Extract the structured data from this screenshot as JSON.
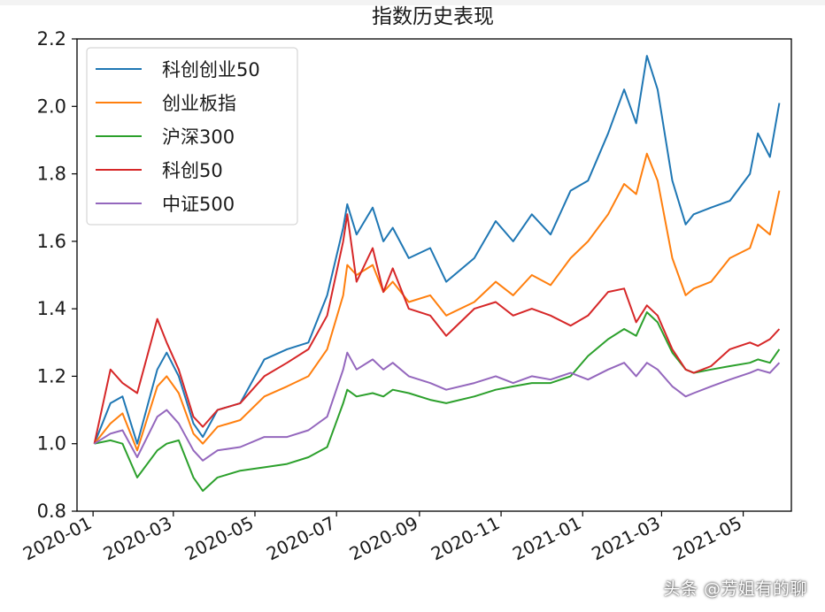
{
  "chart_data": {
    "type": "line",
    "title": "指数历史表现",
    "xlabel": "",
    "ylabel": "",
    "ylim": [
      0.8,
      2.2
    ],
    "xlim": [
      "2019-12-20",
      "2021-06-06"
    ],
    "yticks": [
      0.8,
      1.0,
      1.2,
      1.4,
      1.6,
      1.8,
      2.0,
      2.2
    ],
    "ytick_labels": [
      "0.8",
      "1.0",
      "1.2",
      "1.4",
      "1.6",
      "1.8",
      "2.0",
      "2.2"
    ],
    "xticks": [
      "2020-01-01",
      "2020-03-01",
      "2020-05-01",
      "2020-07-01",
      "2020-09-01",
      "2020-11-01",
      "2021-01-01",
      "2021-03-01",
      "2021-05-01"
    ],
    "xtick_labels": [
      "2020-01",
      "2020-03",
      "2020-05",
      "2020-07",
      "2020-09",
      "2020-11",
      "2021-01",
      "2021-03",
      "2021-05"
    ],
    "grid": false,
    "legend": "top-left",
    "series": [
      {
        "name": "科创创业50",
        "color": "#1f77b4",
        "x": [
          "2020-01-02",
          "2020-01-14",
          "2020-01-23",
          "2020-02-03",
          "2020-02-18",
          "2020-02-25",
          "2020-03-05",
          "2020-03-16",
          "2020-03-23",
          "2020-04-03",
          "2020-04-20",
          "2020-05-08",
          "2020-05-25",
          "2020-06-10",
          "2020-06-24",
          "2020-07-06",
          "2020-07-09",
          "2020-07-16",
          "2020-07-28",
          "2020-08-05",
          "2020-08-12",
          "2020-08-24",
          "2020-09-09",
          "2020-09-21",
          "2020-10-12",
          "2020-10-28",
          "2020-11-10",
          "2020-11-24",
          "2020-12-08",
          "2020-12-23",
          "2021-01-05",
          "2021-01-20",
          "2021-02-01",
          "2021-02-10",
          "2021-02-18",
          "2021-02-26",
          "2021-03-09",
          "2021-03-19",
          "2021-03-25",
          "2021-04-07",
          "2021-04-21",
          "2021-05-06",
          "2021-05-12",
          "2021-05-21",
          "2021-05-28"
        ],
        "values": [
          1.0,
          1.12,
          1.14,
          1.0,
          1.22,
          1.27,
          1.2,
          1.06,
          1.02,
          1.1,
          1.12,
          1.25,
          1.28,
          1.3,
          1.44,
          1.64,
          1.71,
          1.62,
          1.7,
          1.6,
          1.64,
          1.55,
          1.58,
          1.48,
          1.55,
          1.66,
          1.6,
          1.68,
          1.62,
          1.75,
          1.78,
          1.92,
          2.05,
          1.95,
          2.15,
          2.05,
          1.78,
          1.65,
          1.68,
          1.7,
          1.72,
          1.8,
          1.92,
          1.85,
          2.01
        ]
      },
      {
        "name": "创业板指",
        "color": "#ff7f0e",
        "x": [
          "2020-01-02",
          "2020-01-14",
          "2020-01-23",
          "2020-02-03",
          "2020-02-18",
          "2020-02-25",
          "2020-03-05",
          "2020-03-16",
          "2020-03-23",
          "2020-04-03",
          "2020-04-20",
          "2020-05-08",
          "2020-05-25",
          "2020-06-10",
          "2020-06-24",
          "2020-07-06",
          "2020-07-09",
          "2020-07-16",
          "2020-07-28",
          "2020-08-05",
          "2020-08-12",
          "2020-08-24",
          "2020-09-09",
          "2020-09-21",
          "2020-10-12",
          "2020-10-28",
          "2020-11-10",
          "2020-11-24",
          "2020-12-08",
          "2020-12-23",
          "2021-01-05",
          "2021-01-20",
          "2021-02-01",
          "2021-02-10",
          "2021-02-18",
          "2021-02-26",
          "2021-03-09",
          "2021-03-19",
          "2021-03-25",
          "2021-04-07",
          "2021-04-21",
          "2021-05-06",
          "2021-05-12",
          "2021-05-21",
          "2021-05-28"
        ],
        "values": [
          1.0,
          1.06,
          1.09,
          0.98,
          1.17,
          1.2,
          1.15,
          1.03,
          1.0,
          1.05,
          1.07,
          1.14,
          1.17,
          1.2,
          1.28,
          1.44,
          1.53,
          1.5,
          1.53,
          1.45,
          1.48,
          1.42,
          1.44,
          1.38,
          1.42,
          1.48,
          1.44,
          1.5,
          1.47,
          1.55,
          1.6,
          1.68,
          1.77,
          1.74,
          1.86,
          1.78,
          1.55,
          1.44,
          1.46,
          1.48,
          1.55,
          1.58,
          1.65,
          1.62,
          1.75
        ]
      },
      {
        "name": "沪深300",
        "color": "#2ca02c",
        "x": [
          "2020-01-02",
          "2020-01-14",
          "2020-01-23",
          "2020-02-03",
          "2020-02-18",
          "2020-02-25",
          "2020-03-05",
          "2020-03-16",
          "2020-03-23",
          "2020-04-03",
          "2020-04-20",
          "2020-05-08",
          "2020-05-25",
          "2020-06-10",
          "2020-06-24",
          "2020-07-06",
          "2020-07-09",
          "2020-07-16",
          "2020-07-28",
          "2020-08-05",
          "2020-08-12",
          "2020-08-24",
          "2020-09-09",
          "2020-09-21",
          "2020-10-12",
          "2020-10-28",
          "2020-11-10",
          "2020-11-24",
          "2020-12-08",
          "2020-12-23",
          "2021-01-05",
          "2021-01-20",
          "2021-02-01",
          "2021-02-10",
          "2021-02-18",
          "2021-02-26",
          "2021-03-09",
          "2021-03-19",
          "2021-03-25",
          "2021-04-07",
          "2021-04-21",
          "2021-05-06",
          "2021-05-12",
          "2021-05-21",
          "2021-05-28"
        ],
        "values": [
          1.0,
          1.01,
          1.0,
          0.9,
          0.98,
          1.0,
          1.01,
          0.9,
          0.86,
          0.9,
          0.92,
          0.93,
          0.94,
          0.96,
          0.99,
          1.12,
          1.16,
          1.14,
          1.15,
          1.14,
          1.16,
          1.15,
          1.13,
          1.12,
          1.14,
          1.16,
          1.17,
          1.18,
          1.18,
          1.2,
          1.26,
          1.31,
          1.34,
          1.32,
          1.39,
          1.36,
          1.27,
          1.22,
          1.21,
          1.22,
          1.23,
          1.24,
          1.25,
          1.24,
          1.28
        ]
      },
      {
        "name": "科创50",
        "color": "#d62728",
        "x": [
          "2020-01-02",
          "2020-01-14",
          "2020-01-23",
          "2020-02-03",
          "2020-02-18",
          "2020-02-25",
          "2020-03-05",
          "2020-03-16",
          "2020-03-23",
          "2020-04-03",
          "2020-04-20",
          "2020-05-08",
          "2020-05-25",
          "2020-06-10",
          "2020-06-24",
          "2020-07-06",
          "2020-07-09",
          "2020-07-16",
          "2020-07-28",
          "2020-08-05",
          "2020-08-12",
          "2020-08-24",
          "2020-09-09",
          "2020-09-21",
          "2020-10-12",
          "2020-10-28",
          "2020-11-10",
          "2020-11-24",
          "2020-12-08",
          "2020-12-23",
          "2021-01-05",
          "2021-01-20",
          "2021-02-01",
          "2021-02-10",
          "2021-02-18",
          "2021-02-26",
          "2021-03-09",
          "2021-03-19",
          "2021-03-25",
          "2021-04-07",
          "2021-04-21",
          "2021-05-06",
          "2021-05-12",
          "2021-05-21",
          "2021-05-28"
        ],
        "values": [
          1.0,
          1.22,
          1.18,
          1.15,
          1.37,
          1.3,
          1.22,
          1.08,
          1.05,
          1.1,
          1.12,
          1.2,
          1.24,
          1.28,
          1.38,
          1.6,
          1.68,
          1.48,
          1.58,
          1.45,
          1.52,
          1.4,
          1.38,
          1.32,
          1.4,
          1.42,
          1.38,
          1.4,
          1.38,
          1.35,
          1.38,
          1.45,
          1.46,
          1.36,
          1.41,
          1.38,
          1.28,
          1.22,
          1.21,
          1.23,
          1.28,
          1.3,
          1.29,
          1.31,
          1.34
        ]
      },
      {
        "name": "中证500",
        "color": "#9467bd",
        "x": [
          "2020-01-02",
          "2020-01-14",
          "2020-01-23",
          "2020-02-03",
          "2020-02-18",
          "2020-02-25",
          "2020-03-05",
          "2020-03-16",
          "2020-03-23",
          "2020-04-03",
          "2020-04-20",
          "2020-05-08",
          "2020-05-25",
          "2020-06-10",
          "2020-06-24",
          "2020-07-06",
          "2020-07-09",
          "2020-07-16",
          "2020-07-28",
          "2020-08-05",
          "2020-08-12",
          "2020-08-24",
          "2020-09-09",
          "2020-09-21",
          "2020-10-12",
          "2020-10-28",
          "2020-11-10",
          "2020-11-24",
          "2020-12-08",
          "2020-12-23",
          "2021-01-05",
          "2021-01-20",
          "2021-02-01",
          "2021-02-10",
          "2021-02-18",
          "2021-02-26",
          "2021-03-09",
          "2021-03-19",
          "2021-03-25",
          "2021-04-07",
          "2021-04-21",
          "2021-05-06",
          "2021-05-12",
          "2021-05-21",
          "2021-05-28"
        ],
        "values": [
          1.0,
          1.03,
          1.04,
          0.96,
          1.08,
          1.1,
          1.06,
          0.98,
          0.95,
          0.98,
          0.99,
          1.02,
          1.02,
          1.04,
          1.08,
          1.22,
          1.27,
          1.22,
          1.25,
          1.22,
          1.24,
          1.2,
          1.18,
          1.16,
          1.18,
          1.2,
          1.18,
          1.2,
          1.19,
          1.21,
          1.19,
          1.22,
          1.24,
          1.2,
          1.24,
          1.22,
          1.17,
          1.14,
          1.15,
          1.17,
          1.19,
          1.21,
          1.22,
          1.21,
          1.24
        ]
      }
    ]
  },
  "watermark": "头条 @芳姐有的聊"
}
